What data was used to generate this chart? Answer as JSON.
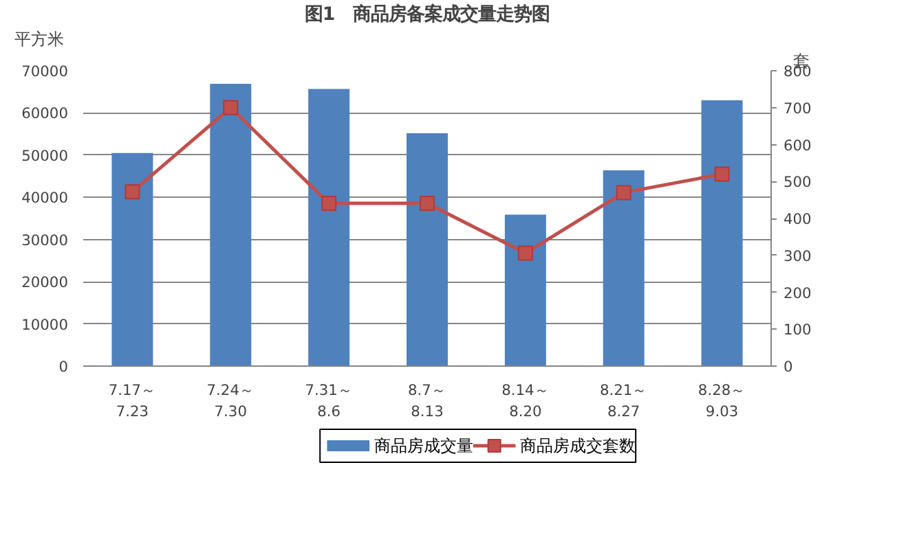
{
  "chart_data": {
    "type": "bar",
    "title": "图1　商品房备案成交量走势图",
    "ylabel": "平方米",
    "y2label": "套",
    "categories": [
      "7.17～\n7.23",
      "7.24～\n7.30",
      "7.31～\n8.6",
      "8.7～\n8.13",
      "8.14～\n8.20",
      "8.21～\n8.27",
      "8.28～\n9.03"
    ],
    "series": [
      {
        "name": "商品房成交量",
        "color": "#4f81bd",
        "values": [
          50500,
          66900,
          65700,
          55200,
          35900,
          46400,
          63000
        ]
      },
      {
        "name": "商品房成交套数",
        "type": "line",
        "axis": "y2",
        "color": "#c0504d",
        "marker": "square",
        "values": [
          472,
          700,
          441,
          441,
          306,
          470,
          520
        ]
      }
    ],
    "ylim": [
      0,
      70000
    ],
    "yticks": [
      0,
      10000,
      20000,
      30000,
      40000,
      50000,
      60000,
      70000
    ],
    "y2lim": [
      0,
      800
    ],
    "y2ticks": [
      0,
      100,
      200,
      300,
      400,
      500,
      600,
      700,
      800
    ],
    "grid": "y",
    "legend": "bottom"
  }
}
